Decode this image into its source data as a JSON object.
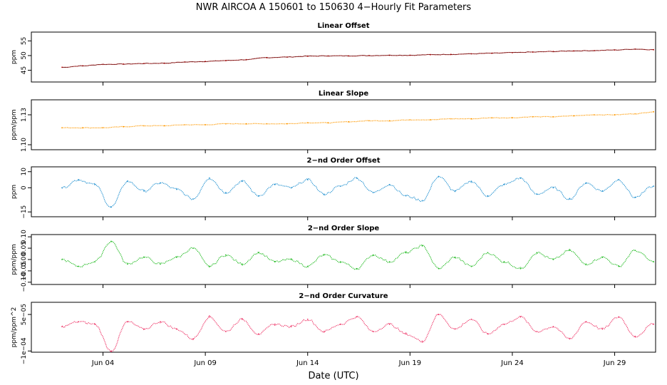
{
  "figure": {
    "title": "NWR   AIRCOA A   150601 to 150630   4−Hourly Fit Parameters",
    "xlabel": "Date (UTC)",
    "x_ticks": [
      "Jun 04",
      "Jun 09",
      "Jun 14",
      "Jun 19",
      "Jun 24",
      "Jun 29"
    ]
  },
  "chart_data": [
    {
      "type": "line",
      "title": "Linear Offset",
      "ylabel": "ppm",
      "xlabel": "Date (UTC)",
      "x_domain_days": [
        0,
        30.5
      ],
      "ylim": [
        41,
        58
      ],
      "y_ticks": [
        {
          "v": 45,
          "label": "45"
        },
        {
          "v": 50,
          "label": "50"
        },
        {
          "v": 55,
          "label": "55"
        }
      ],
      "color": "#cc0000",
      "series": [
        {
          "name": "Linear Offset",
          "x": [
            1.5,
            2.5,
            3.5,
            4.5,
            5.5,
            6.5,
            7.5,
            8.5,
            9.5,
            10.5,
            11.5,
            12.5,
            13.5,
            14.5,
            15.5,
            16.5,
            17.5,
            18.5,
            19.5,
            20.5,
            21.5,
            22.5,
            23.5,
            24.5,
            25.5,
            26.5,
            27.5,
            28.5,
            29.5,
            30.4
          ],
          "values": [
            46.0,
            46.5,
            47.0,
            47.1,
            47.3,
            47.4,
            47.8,
            48.0,
            48.3,
            48.6,
            49.3,
            49.5,
            49.8,
            49.9,
            49.9,
            50.0,
            50.1,
            50.1,
            50.3,
            50.4,
            50.6,
            50.8,
            51.0,
            51.2,
            51.4,
            51.6,
            51.7,
            51.9,
            52.2,
            52.0
          ]
        }
      ]
    },
    {
      "type": "line",
      "title": "Linear Slope",
      "ylabel": "ppm/ppm",
      "xlabel": "Date (UTC)",
      "x_domain_days": [
        0,
        30.5
      ],
      "ylim": [
        1.095,
        1.145
      ],
      "y_ticks": [
        {
          "v": 1.1,
          "label": "1.10"
        },
        {
          "v": 1.13,
          "label": "1.13"
        }
      ],
      "color": "#ff9900",
      "series": [
        {
          "name": "Linear Slope",
          "x": [
            1.5,
            2.5,
            3.5,
            4.5,
            5.5,
            6.5,
            7.5,
            8.5,
            9.5,
            10.5,
            11.5,
            12.5,
            13.5,
            14.5,
            15.5,
            16.5,
            17.5,
            18.5,
            19.5,
            20.5,
            21.5,
            22.5,
            23.5,
            24.5,
            25.5,
            26.5,
            27.5,
            28.5,
            29.5,
            30.4
          ],
          "values": [
            1.117,
            1.117,
            1.117,
            1.118,
            1.119,
            1.119,
            1.12,
            1.12,
            1.121,
            1.121,
            1.121,
            1.121,
            1.122,
            1.122,
            1.123,
            1.124,
            1.124,
            1.125,
            1.125,
            1.126,
            1.126,
            1.127,
            1.127,
            1.128,
            1.128,
            1.129,
            1.13,
            1.13,
            1.131,
            1.133
          ]
        }
      ]
    },
    {
      "type": "line",
      "title": "2−nd Order Offset",
      "ylabel": "ppm",
      "xlabel": "Date (UTC)",
      "x_domain_days": [
        0,
        30.5
      ],
      "ylim": [
        -18,
        13
      ],
      "y_ticks": [
        {
          "v": 10,
          "label": "10"
        },
        {
          "v": 0,
          "label": "0"
        },
        {
          "v": -15,
          "label": "−15"
        }
      ],
      "color": "#2090d0",
      "series": [
        {
          "name": "2-nd Order Offset",
          "x": [
            1.5,
            2.3,
            3.1,
            3.9,
            4.7,
            5.5,
            6.3,
            7.1,
            7.9,
            8.7,
            9.5,
            10.3,
            11.1,
            11.9,
            12.7,
            13.5,
            14.3,
            15.1,
            15.9,
            16.7,
            17.5,
            18.3,
            19.1,
            19.9,
            20.7,
            21.5,
            22.3,
            23.1,
            23.9,
            24.7,
            25.5,
            26.3,
            27.1,
            27.9,
            28.7,
            29.5,
            30.4
          ],
          "values": [
            0.0,
            5.0,
            2.0,
            -12.0,
            4.0,
            -2.0,
            3.0,
            -1.0,
            -7.0,
            6.0,
            -3.0,
            4.0,
            -5.0,
            2.0,
            0.0,
            5.0,
            -4.0,
            1.0,
            6.0,
            -3.0,
            2.0,
            -5.0,
            -8.0,
            7.0,
            -2.0,
            4.0,
            -5.0,
            2.0,
            6.0,
            -4.0,
            0.0,
            -7.0,
            3.0,
            -2.0,
            5.0,
            -6.0,
            1.0
          ]
        }
      ]
    },
    {
      "type": "line",
      "title": "2−nd Order Slope",
      "ylabel": "ppm/ppm",
      "xlabel": "Date (UTC)",
      "x_domain_days": [
        0,
        30.5
      ],
      "ylim": [
        -0.11,
        0.11
      ],
      "y_ticks": [
        {
          "v": 0.1,
          "label": "0.10"
        },
        {
          "v": 0.05,
          "label": "0.05"
        },
        {
          "v": 0.0,
          "label": "0.00"
        },
        {
          "v": -0.05,
          "label": "−0.05"
        },
        {
          "v": -0.1,
          "label": "−0.10"
        }
      ],
      "color": "#22bb22",
      "series": [
        {
          "name": "2-nd Order Slope",
          "x": [
            1.5,
            2.3,
            3.1,
            3.9,
            4.7,
            5.5,
            6.3,
            7.1,
            7.9,
            8.7,
            9.5,
            10.3,
            11.1,
            11.9,
            12.7,
            13.5,
            14.3,
            15.1,
            15.9,
            16.7,
            17.5,
            18.3,
            19.1,
            19.9,
            20.7,
            21.5,
            22.3,
            23.1,
            23.9,
            24.7,
            25.5,
            26.3,
            27.1,
            27.9,
            28.7,
            29.5,
            30.4
          ],
          "values": [
            0.0,
            -0.03,
            -0.01,
            0.08,
            -0.02,
            0.01,
            -0.02,
            0.01,
            0.05,
            -0.03,
            0.02,
            -0.02,
            0.03,
            -0.01,
            0.0,
            -0.03,
            0.02,
            -0.01,
            -0.04,
            0.02,
            -0.01,
            0.03,
            0.06,
            -0.04,
            0.01,
            -0.03,
            0.03,
            -0.01,
            -0.04,
            0.03,
            0.0,
            0.04,
            -0.02,
            0.01,
            -0.03,
            0.04,
            -0.01
          ]
        }
      ]
    },
    {
      "type": "line",
      "title": "2−nd Order Curvature",
      "ylabel": "ppm/ppm^2",
      "xlabel": "Date (UTC)",
      "x_domain_days": [
        0,
        30.5
      ],
      "ylim": [
        -0.000105,
        0.0001
      ],
      "y_ticks": [
        {
          "v": 5e-05,
          "label": "5e−05"
        },
        {
          "v": -0.0001,
          "label": "−1e−04"
        }
      ],
      "color": "#ee3366",
      "series": [
        {
          "name": "2-nd Order Curvature",
          "x": [
            1.5,
            2.3,
            3.1,
            3.9,
            4.7,
            5.5,
            6.3,
            7.1,
            7.9,
            8.7,
            9.5,
            10.3,
            11.1,
            11.9,
            12.7,
            13.5,
            14.3,
            15.1,
            15.9,
            16.7,
            17.5,
            18.3,
            19.1,
            19.9,
            20.7,
            21.5,
            22.3,
            23.1,
            23.9,
            24.7,
            25.5,
            26.3,
            27.1,
            27.9,
            28.7,
            29.5,
            30.4
          ],
          "values": [
            0.0,
            2e-05,
            1e-05,
            -0.0001,
            2e-05,
            -1e-05,
            2e-05,
            -1e-05,
            -5e-05,
            4e-05,
            -2e-05,
            3e-05,
            -3e-05,
            1e-05,
            0.0,
            3e-05,
            -2e-05,
            1e-05,
            4e-05,
            -2e-05,
            1e-05,
            -3e-05,
            -6e-05,
            5e-05,
            -1e-05,
            3e-05,
            -3e-05,
            1e-05,
            4e-05,
            -2e-05,
            0.0,
            -5e-05,
            2e-05,
            -1e-05,
            4e-05,
            -4e-05,
            1e-05
          ]
        }
      ]
    }
  ]
}
